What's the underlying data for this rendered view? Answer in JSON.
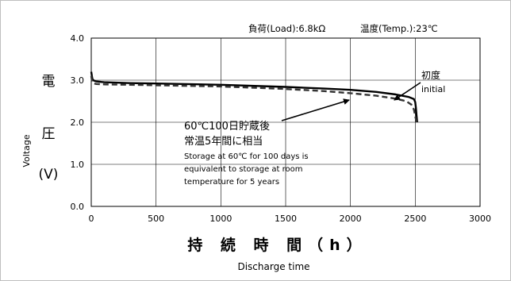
{
  "chart_data": {
    "type": "line",
    "title": "",
    "conditions": {
      "load": "負荷(Load):6.8kΩ",
      "temp": "温度(Temp.):23℃"
    },
    "xlabel_jp": "持 続 時 間（h）",
    "xlabel_en": "Discharge time",
    "ylabel_jp": [
      "電",
      "圧",
      "(V)"
    ],
    "ylabel_en": "Voltage",
    "xlim": [
      0,
      3000
    ],
    "ylim": [
      0.0,
      4.0
    ],
    "x_ticks": [
      "0",
      "500",
      "1000",
      "1500",
      "2000",
      "2500",
      "3000"
    ],
    "y_ticks": [
      "0.0",
      "1.0",
      "2.0",
      "3.0",
      "4.0"
    ],
    "grid": true,
    "series": [
      {
        "name": "初度 initial",
        "style": "solid",
        "color": "#000000",
        "x": [
          0,
          5,
          10,
          20,
          40,
          100,
          300,
          500,
          1000,
          1500,
          1800,
          2000,
          2200,
          2350,
          2450,
          2490,
          2500,
          2505,
          2510,
          2515
        ],
        "y": [
          3.2,
          3.1,
          3.02,
          2.99,
          2.97,
          2.95,
          2.93,
          2.92,
          2.89,
          2.84,
          2.8,
          2.77,
          2.72,
          2.66,
          2.6,
          2.55,
          2.48,
          2.35,
          2.15,
          2.0
        ]
      },
      {
        "name": "60℃100日貯蔵後 常温5年間に相当",
        "style": "dashed",
        "color": "#333333",
        "x": [
          0,
          5,
          10,
          20,
          40,
          100,
          300,
          500,
          1000,
          1500,
          1800,
          2000,
          2200,
          2350,
          2430,
          2470,
          2490,
          2500,
          2510
        ],
        "y": [
          3.1,
          3.0,
          2.95,
          2.92,
          2.91,
          2.9,
          2.89,
          2.88,
          2.85,
          2.79,
          2.74,
          2.69,
          2.63,
          2.56,
          2.5,
          2.42,
          2.3,
          2.15,
          2.0
        ]
      }
    ],
    "annotations": {
      "initial": {
        "jp": "初度",
        "en": "initial"
      },
      "stored": {
        "jp_line1": "60℃100日貯蔵後",
        "jp_line2": "常温5年間に相当",
        "en_line1": "Storage at 60℃ for 100 days is",
        "en_line2": "equivalent to storage at room",
        "en_line3": "temperature for 5 years"
      }
    }
  }
}
